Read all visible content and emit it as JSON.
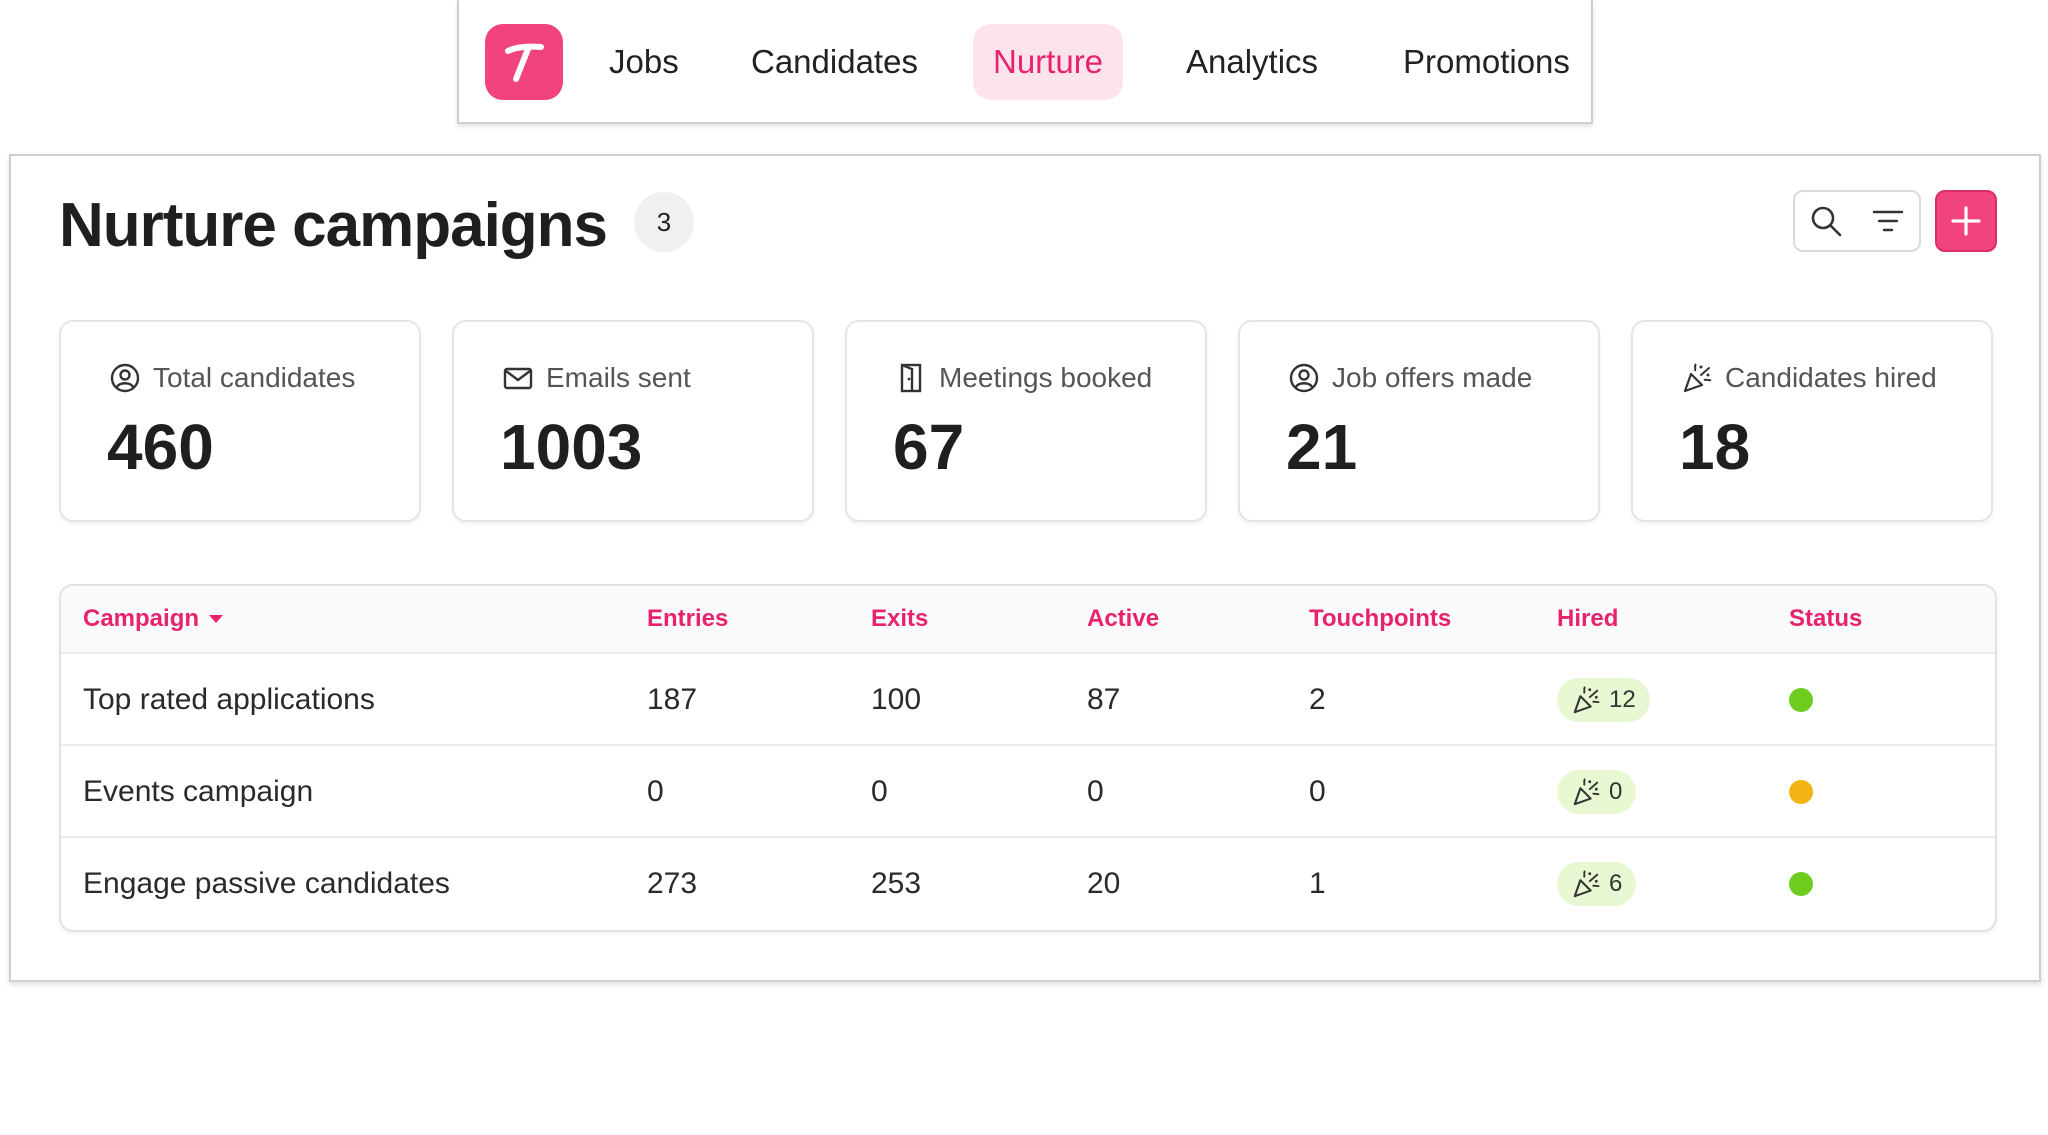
{
  "nav": {
    "logo_letter": "T",
    "items": [
      {
        "label": "Jobs",
        "active": false
      },
      {
        "label": "Candidates",
        "active": false
      },
      {
        "label": "Nurture",
        "active": true
      },
      {
        "label": "Analytics",
        "active": false
      },
      {
        "label": "Promotions",
        "active": false
      }
    ]
  },
  "header": {
    "title": "Nurture campaigns",
    "count": "3"
  },
  "toolbar": {
    "search_icon": "search-icon",
    "filter_icon": "filter-icon",
    "add_icon": "plus-icon"
  },
  "stats": [
    {
      "icon": "user-circle-icon",
      "label": "Total candidates",
      "value": "460"
    },
    {
      "icon": "mail-icon",
      "label": "Emails sent",
      "value": "1003"
    },
    {
      "icon": "door-icon",
      "label": "Meetings booked",
      "value": "67"
    },
    {
      "icon": "user-circle-icon",
      "label": "Job offers made",
      "value": "21"
    },
    {
      "icon": "party-popper-icon",
      "label": "Candidates hired",
      "value": "18"
    }
  ],
  "table": {
    "columns": [
      "Campaign",
      "Entries",
      "Exits",
      "Active",
      "Touchpoints",
      "Hired",
      "Status"
    ],
    "rows": [
      {
        "campaign": "Top rated applications",
        "entries": "187",
        "exits": "100",
        "active": "87",
        "touchpoints": "2",
        "hired": "12",
        "status_color": "#6fcd1f"
      },
      {
        "campaign": "Events campaign",
        "entries": "0",
        "exits": "0",
        "active": "0",
        "touchpoints": "0",
        "hired": "0",
        "status_color": "#f2b413"
      },
      {
        "campaign": "Engage passive candidates",
        "entries": "273",
        "exits": "253",
        "active": "20",
        "touchpoints": "1",
        "hired": "6",
        "status_color": "#6fcd1f"
      }
    ]
  },
  "colors": {
    "accent": "#f1437e",
    "accent_text": "#e8226e",
    "active_nav_bg": "#fde4ec",
    "hired_bg": "#e8f8d2"
  }
}
